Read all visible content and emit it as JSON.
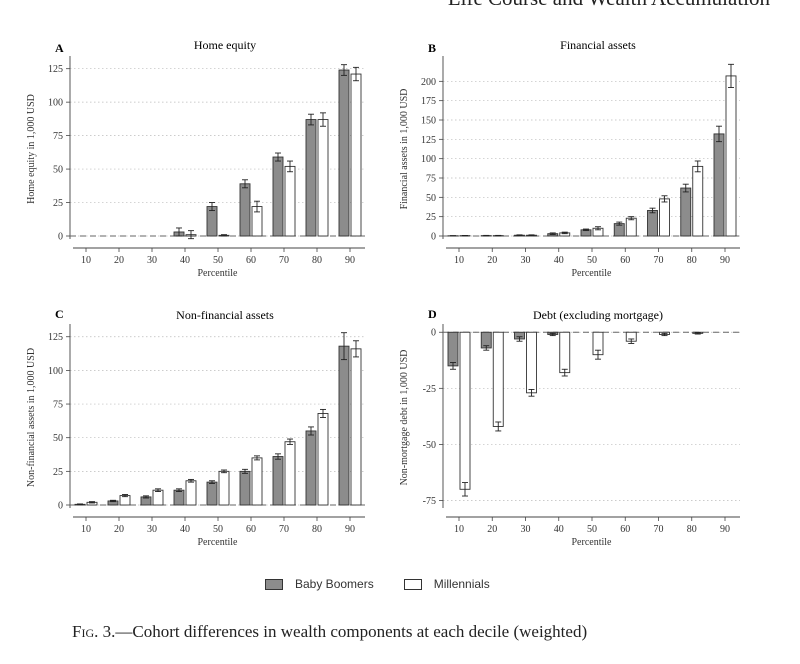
{
  "page": {
    "running_head": "Life Course and Wealth Accumulation",
    "caption_label": "Fig. 3.",
    "caption_text": "—Cohort differences in wealth components at each decile (weighted)"
  },
  "legend": {
    "items": [
      {
        "label": "Baby Boomers",
        "color": "#8c8c8c"
      },
      {
        "label": "Millennials",
        "color": "#ffffff"
      }
    ]
  },
  "chart_data": [
    {
      "id": "A",
      "type": "bar",
      "title": "Home equity",
      "xlabel": "Percentile",
      "ylabel": "Home equity in 1,000 USD",
      "categories": [
        "10",
        "20",
        "30",
        "40",
        "50",
        "60",
        "70",
        "80",
        "90"
      ],
      "ylim": [
        0,
        130
      ],
      "yticks": [
        0,
        25,
        50,
        75,
        100,
        125
      ],
      "series": [
        {
          "name": "Baby Boomers",
          "values": [
            0,
            0,
            0,
            3,
            22,
            39,
            59,
            87,
            124
          ],
          "errors": [
            0,
            0,
            0,
            3,
            3,
            3,
            3,
            4,
            4
          ]
        },
        {
          "name": "Millennials",
          "values": [
            0,
            0,
            0,
            1,
            0.5,
            22,
            52,
            87,
            121
          ],
          "errors": [
            0,
            0,
            0,
            3,
            0.5,
            4,
            4,
            5,
            5
          ]
        }
      ]
    },
    {
      "id": "B",
      "type": "bar",
      "title": "Financial assets",
      "xlabel": "Percentile",
      "ylabel": "Financial assets in 1,000 USD",
      "categories": [
        "10",
        "20",
        "30",
        "40",
        "50",
        "60",
        "70",
        "80",
        "90"
      ],
      "ylim": [
        0,
        225
      ],
      "yticks": [
        0,
        25,
        50,
        75,
        100,
        125,
        150,
        175,
        200
      ],
      "series": [
        {
          "name": "Baby Boomers",
          "values": [
            0.3,
            0.5,
            1,
            3,
            8,
            16,
            33,
            62,
            132
          ],
          "errors": [
            0.2,
            0.3,
            0.5,
            1,
            1,
            2,
            3,
            5,
            10
          ]
        },
        {
          "name": "Millennials",
          "values": [
            0.5,
            0.5,
            1,
            4,
            10,
            23,
            48,
            90,
            207
          ],
          "errors": [
            0.2,
            0.3,
            0.5,
            1,
            2,
            2,
            4,
            7,
            15
          ]
        }
      ]
    },
    {
      "id": "C",
      "type": "bar",
      "title": "Non-financial assets",
      "xlabel": "Percentile",
      "ylabel": "Non-financial assets in 1,000 USD",
      "categories": [
        "10",
        "20",
        "30",
        "40",
        "50",
        "60",
        "70",
        "80",
        "90"
      ],
      "ylim": [
        0,
        130
      ],
      "yticks": [
        0,
        25,
        50,
        75,
        100,
        125
      ],
      "series": [
        {
          "name": "Baby Boomers",
          "values": [
            0.5,
            3,
            6,
            11,
            17,
            25,
            36,
            55,
            118
          ],
          "errors": [
            0.3,
            0.5,
            0.8,
            1,
            1,
            1.5,
            2,
            3,
            10
          ]
        },
        {
          "name": "Millennials",
          "values": [
            2,
            7,
            11,
            18,
            25,
            35,
            47,
            68,
            116
          ],
          "errors": [
            0.5,
            0.8,
            1,
            1,
            1,
            1.5,
            2,
            3,
            6
          ]
        }
      ]
    },
    {
      "id": "D",
      "type": "bar",
      "title": "Debt (excluding mortgage)",
      "xlabel": "Percentile",
      "ylabel": "Non-mortgage debt in 1,000 USD",
      "categories": [
        "10",
        "20",
        "30",
        "40",
        "50",
        "60",
        "70",
        "80",
        "90"
      ],
      "ylim": [
        -77,
        1
      ],
      "yticks": [
        0,
        -25,
        -50,
        -75
      ],
      "series": [
        {
          "name": "Baby Boomers",
          "values": [
            -15,
            -7,
            -3,
            -1,
            0,
            0,
            0,
            0,
            0
          ],
          "errors": [
            1.5,
            1,
            1,
            0.5,
            0,
            0,
            0,
            0,
            0
          ]
        },
        {
          "name": "Millennials",
          "values": [
            -70,
            -42,
            -27,
            -18,
            -10,
            -4,
            -1,
            -0.5,
            0
          ],
          "errors": [
            3,
            2,
            1.5,
            1.5,
            2,
            1,
            0.5,
            0.3,
            0
          ]
        }
      ]
    }
  ]
}
